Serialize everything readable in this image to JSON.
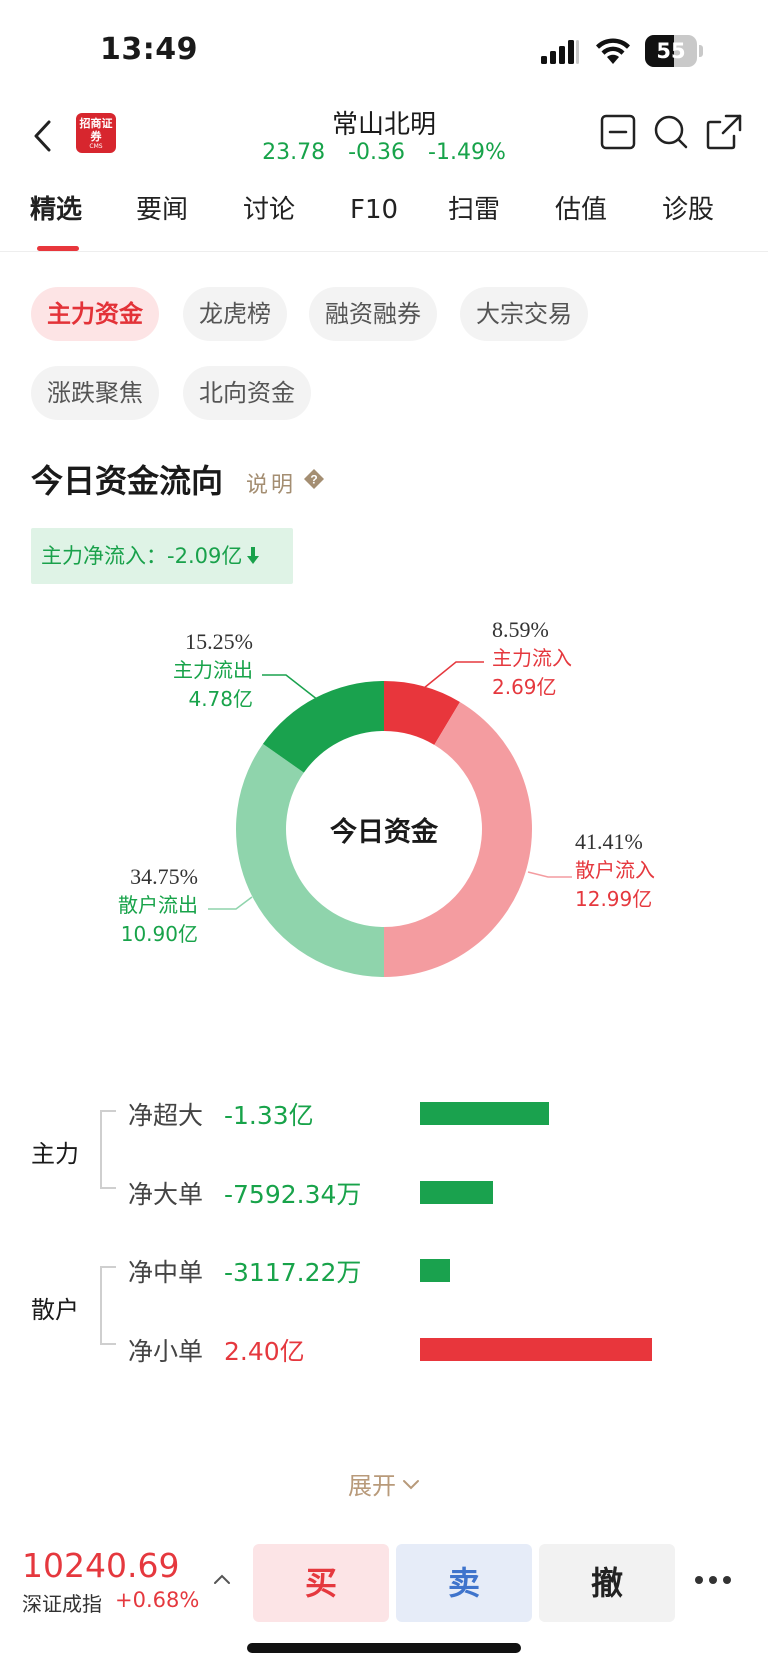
{
  "status_bar": {
    "time": "13:49",
    "battery": "55",
    "battery_level": 0.55
  },
  "header": {
    "stock_name": "常山北明",
    "price": "23.78",
    "change": "-0.36",
    "change_pct": "-1.49%",
    "logo_text": "招商证券",
    "logo_sub": "CMS"
  },
  "tabs": [
    {
      "label": "精选",
      "active": true
    },
    {
      "label": "要闻"
    },
    {
      "label": "讨论"
    },
    {
      "label": "F10"
    },
    {
      "label": "扫雷"
    },
    {
      "label": "估值"
    },
    {
      "label": "诊股"
    }
  ],
  "chips": [
    {
      "label": "主力资金",
      "active": true
    },
    {
      "label": "龙虎榜"
    },
    {
      "label": "融资融券"
    },
    {
      "label": "大宗交易"
    },
    {
      "label": "涨跌聚焦"
    },
    {
      "label": "北向资金"
    }
  ],
  "section": {
    "title": "今日资金流向",
    "explain": "说明",
    "net_inflow_label": "主力净流入：",
    "net_inflow_value": "-2.09亿"
  },
  "chart_data": {
    "type": "pie",
    "title": "今日资金",
    "slices": [
      {
        "name": "主力流入",
        "value": 2.69,
        "percent": "8.59%",
        "amount": "2.69亿",
        "color": "#e8363c"
      },
      {
        "name": "散户流入",
        "value": 12.99,
        "percent": "41.41%",
        "amount": "12.99亿",
        "color": "#f49ca0"
      },
      {
        "name": "散户流出",
        "value": 10.9,
        "percent": "34.75%",
        "amount": "10.90亿",
        "color": "#8fd4ac"
      },
      {
        "name": "主力流出",
        "value": 4.78,
        "percent": "15.25%",
        "amount": "4.78亿",
        "color": "#1aa24e"
      }
    ]
  },
  "breakdown": {
    "groups": [
      {
        "label": "主力"
      },
      {
        "label": "散户"
      }
    ],
    "rows": [
      {
        "name": "净超大",
        "value": "-1.33亿",
        "amount_wan": -13300,
        "color": "#1aa24e"
      },
      {
        "name": "净大单",
        "value": "-7592.34万",
        "amount_wan": -7592.34,
        "color": "#1aa24e"
      },
      {
        "name": "净中单",
        "value": "-3117.22万",
        "amount_wan": -3117.22,
        "color": "#1aa24e"
      },
      {
        "name": "净小单",
        "value": "2.40亿",
        "amount_wan": 24000,
        "color": "#e8363c"
      }
    ]
  },
  "expand_label": "展开",
  "bottom_bar": {
    "index_value": "10240.69",
    "index_name": "深证成指",
    "index_change": "+0.68%",
    "buy": "买",
    "sell": "卖",
    "cancel": "撤"
  }
}
